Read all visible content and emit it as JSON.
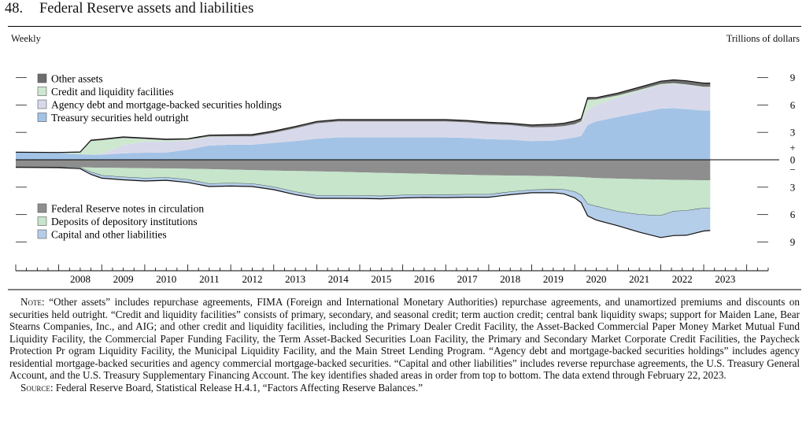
{
  "figure": {
    "number": "48.",
    "title": "Federal Reserve assets and liabilities",
    "frequency": "Weekly",
    "units": "Trillions of dollars"
  },
  "colors": {
    "other_assets": "#6d6d6d",
    "credit": "#cde8cf",
    "agency": "#d7d9ea",
    "treasury": "#a3c3e6",
    "notes": "#8e8e8e",
    "deposits": "#c6e5cb",
    "capital": "#b4cde9",
    "edge": "#111111"
  },
  "chart_data": {
    "type": "area",
    "frequency": "Weekly",
    "ylabel": "Trillions of dollars",
    "ylim": [
      -11,
      11
    ],
    "yticks_upper": [
      "9",
      "6",
      "3"
    ],
    "yticks_lower": [
      "3",
      "6",
      "9"
    ],
    "zero_label": "0",
    "plus_sign": "+",
    "minus_sign": "−",
    "x_tick_labels": [
      "2008",
      "2009",
      "2010",
      "2011",
      "2012",
      "2013",
      "2014",
      "2015",
      "2016",
      "2017",
      "2018",
      "2019",
      "2020",
      "2021",
      "2022",
      "2023"
    ],
    "x": [
      2007.0,
      2008.0,
      2008.5,
      2008.75,
      2009.0,
      2009.5,
      2010.0,
      2010.5,
      2011.0,
      2011.5,
      2012.0,
      2012.5,
      2013.0,
      2013.5,
      2014.0,
      2014.5,
      2015.0,
      2015.5,
      2016.0,
      2016.5,
      2017.0,
      2017.5,
      2018.0,
      2018.5,
      2019.0,
      2019.5,
      2019.75,
      2020.0,
      2020.15,
      2020.3,
      2020.5,
      2021.0,
      2021.5,
      2022.0,
      2022.3,
      2022.6,
      2023.0,
      2023.15
    ],
    "assets_series": [
      {
        "name": "Other assets",
        "values": [
          0.05,
          0.05,
          0.05,
          0.1,
          0.1,
          0.1,
          0.1,
          0.1,
          0.1,
          0.15,
          0.15,
          0.2,
          0.2,
          0.2,
          0.2,
          0.2,
          0.2,
          0.2,
          0.2,
          0.2,
          0.2,
          0.2,
          0.2,
          0.2,
          0.25,
          0.3,
          0.3,
          0.35,
          0.3,
          0.25,
          0.2,
          0.25,
          0.3,
          0.3,
          0.35,
          0.4,
          0.4,
          0.4
        ]
      },
      {
        "name": "Credit and liquidity facilities",
        "values": [
          0.0,
          0.0,
          0.2,
          1.5,
          1.5,
          0.8,
          0.3,
          0.15,
          0.1,
          0.05,
          0.02,
          0.01,
          0.0,
          0.0,
          0.0,
          0.0,
          0.0,
          0.0,
          0.0,
          0.0,
          0.0,
          0.0,
          0.0,
          0.0,
          0.0,
          0.0,
          0.0,
          0.0,
          0.15,
          1.1,
          0.6,
          0.25,
          0.15,
          0.1,
          0.1,
          0.05,
          0.05,
          0.05
        ]
      },
      {
        "name": "Agency debt and mortgage-backed securities holdings",
        "values": [
          0.0,
          0.0,
          0.0,
          0.0,
          0.1,
          0.9,
          1.2,
          1.2,
          1.0,
          0.95,
          0.9,
          0.9,
          1.1,
          1.4,
          1.7,
          1.75,
          1.75,
          1.75,
          1.75,
          1.75,
          1.75,
          1.7,
          1.65,
          1.6,
          1.5,
          1.5,
          1.45,
          1.45,
          1.45,
          1.65,
          1.8,
          2.1,
          2.35,
          2.6,
          2.65,
          2.65,
          2.55,
          2.55
        ]
      },
      {
        "name": "Treasury securities held outright",
        "values": [
          0.78,
          0.75,
          0.6,
          0.55,
          0.55,
          0.7,
          0.78,
          0.8,
          1.1,
          1.55,
          1.65,
          1.65,
          1.85,
          2.05,
          2.3,
          2.45,
          2.45,
          2.45,
          2.45,
          2.45,
          2.45,
          2.4,
          2.25,
          2.2,
          2.05,
          2.1,
          2.25,
          2.45,
          2.6,
          3.8,
          4.2,
          4.7,
          5.15,
          5.6,
          5.65,
          5.55,
          5.4,
          5.4
        ]
      }
    ],
    "liabilities_series": [
      {
        "name": "Federal Reserve notes in circulation",
        "values": [
          0.78,
          0.8,
          0.82,
          0.85,
          0.87,
          0.9,
          0.93,
          0.95,
          0.98,
          1.03,
          1.08,
          1.13,
          1.18,
          1.22,
          1.27,
          1.32,
          1.38,
          1.43,
          1.48,
          1.53,
          1.6,
          1.65,
          1.7,
          1.73,
          1.76,
          1.8,
          1.83,
          1.87,
          1.9,
          1.95,
          2.0,
          2.07,
          2.12,
          2.17,
          2.2,
          2.22,
          2.25,
          2.25
        ]
      },
      {
        "name": "Deposits of depository institutions",
        "values": [
          0.01,
          0.01,
          0.05,
          0.5,
          0.85,
          1.0,
          1.1,
          1.0,
          1.2,
          1.6,
          1.5,
          1.5,
          1.8,
          2.3,
          2.65,
          2.6,
          2.55,
          2.55,
          2.4,
          2.3,
          2.25,
          2.15,
          2.1,
          1.8,
          1.55,
          1.45,
          1.45,
          1.65,
          2.0,
          2.9,
          3.1,
          3.6,
          3.9,
          3.95,
          3.45,
          3.35,
          3.05,
          3.05
        ]
      },
      {
        "name": "Capital and other liabilities",
        "values": [
          0.05,
          0.05,
          0.1,
          0.25,
          0.3,
          0.3,
          0.3,
          0.3,
          0.3,
          0.3,
          0.3,
          0.3,
          0.3,
          0.3,
          0.3,
          0.3,
          0.3,
          0.3,
          0.3,
          0.3,
          0.3,
          0.3,
          0.3,
          0.3,
          0.3,
          0.35,
          0.45,
          0.65,
          0.8,
          1.3,
          1.5,
          1.55,
          1.9,
          2.4,
          2.65,
          2.7,
          2.5,
          2.45
        ]
      }
    ],
    "legend_assets_placement": "top-left",
    "legend_liabilities_placement": "bottom-left"
  },
  "notes": {
    "note_label": "Note:",
    "note_text": "“Other assets” includes repurchase agreements, FIMA (Foreign and International Monetary Authorities) repurchase agreements, and unamortized premiums and discounts on securities held outright. “Credit and liquidity facilities” consists of primary, secondary, and seasonal credit; term auction credit; central bank liquidity swaps; support for Maiden Lane, Bear Stearns Companies, Inc., and AIG; and other credit and liquidity facilities, including the Primary Dealer Credit Facility, the Asset-Backed Commercial Paper Money Market Mutual Fund Liquidity Facility, the Commercial Paper Funding Facility, the Term Asset-Backed Securities Loan Facility, the Primary and Secondary Market Corporate Credit Facilities, the Paycheck Protection Pr ogram Liquidity Facility, the Municipal Liquidity Facility, and the Main Street Lending Program. “Agency debt and mortgage-backed securities holdings” includes agency residential mortgage-backed securities and agency commercial mortgage-backed securities. “Capital and other liabilities” includes reverse repurchase agreements, the U.S. Treasury General Account, and the U.S. Treasury Supplementary Financing Account. The key identifies shaded areas in order from top to bottom. The data extend through February 22, 2023.",
    "source_label": "Source:",
    "source_text": "Federal Reserve Board, Statistical Release H.4.1, “Factors Affecting Reserve Balances.”"
  }
}
